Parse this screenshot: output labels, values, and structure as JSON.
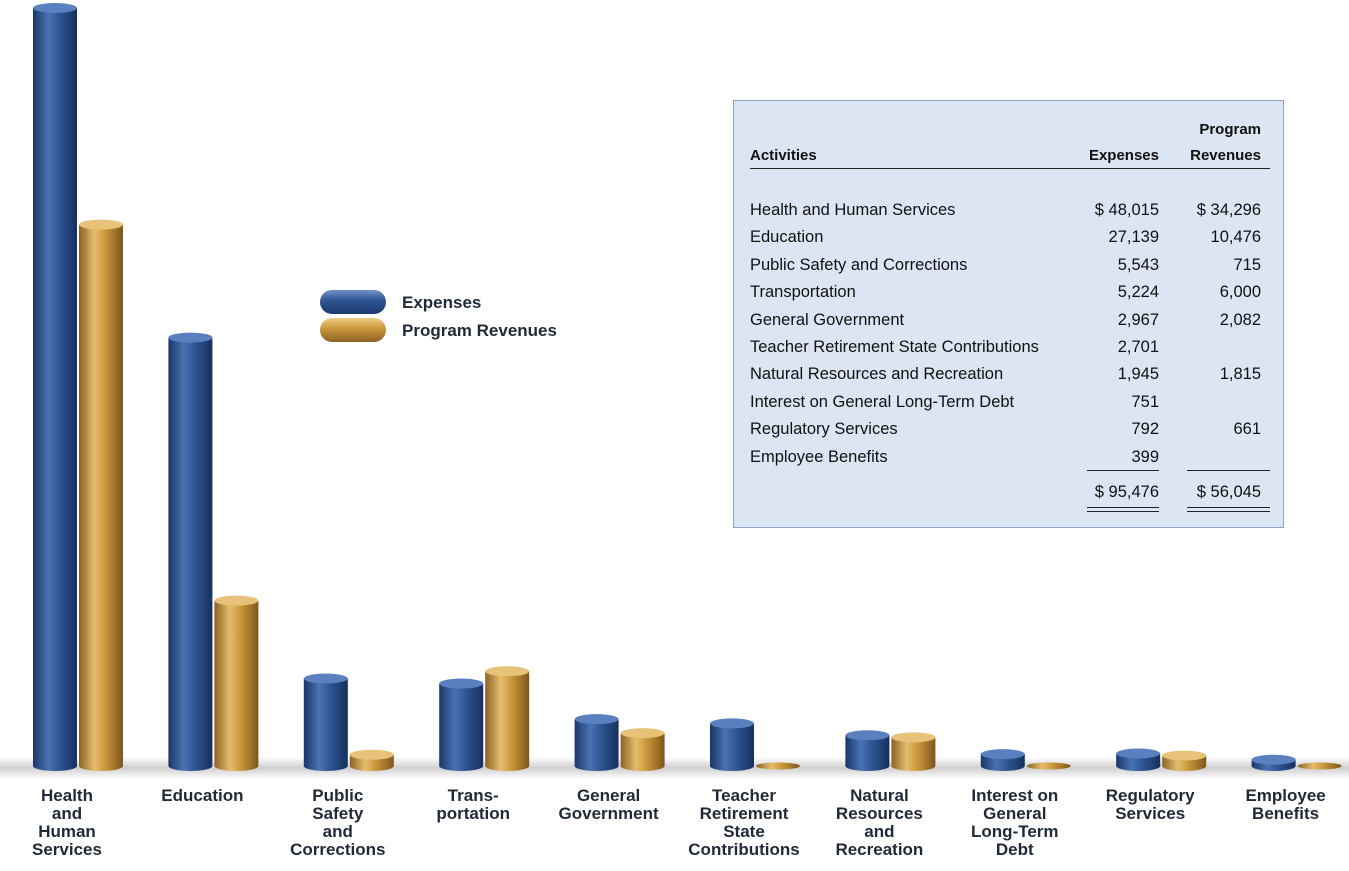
{
  "chart_data": {
    "type": "bar",
    "categories": [
      "Health\nand\nHuman\nServices",
      "Education",
      "Public\nSafety\nand\nCorrections",
      "Trans-\nportation",
      "General\nGovernment",
      "Teacher\nRetirement\nState\nContributions",
      "Natural\nResources\nand\nRecreation",
      "Interest on\nGeneral\nLong-Term\nDebt",
      "Regulatory\nServices",
      "Employee\nBenefits"
    ],
    "series": [
      {
        "name": "Expenses",
        "color": "#2e5392",
        "values": [
          48015,
          27139,
          5543,
          5224,
          2967,
          2701,
          1945,
          751,
          792,
          399
        ]
      },
      {
        "name": "Program Revenues",
        "color": "#c9973a",
        "values": [
          34296,
          10476,
          715,
          6000,
          2082,
          0,
          1815,
          0,
          661,
          0
        ]
      }
    ],
    "ylim": [
      0,
      48015
    ],
    "legend": "upper-center",
    "grid": false
  },
  "table": {
    "header": {
      "activities": "Activities",
      "expenses": "Expenses",
      "revenues_line1": "Program",
      "revenues_line2": "Revenues"
    },
    "rows": [
      {
        "label": "Health and Human Services",
        "expenses": "$ 48,015",
        "revenues": "$ 34,296"
      },
      {
        "label": "Education",
        "expenses": "27,139",
        "revenues": "10,476"
      },
      {
        "label": "Public Safety and Corrections",
        "expenses": "5,543",
        "revenues": "715"
      },
      {
        "label": "Transportation",
        "expenses": "5,224",
        "revenues": "6,000"
      },
      {
        "label": "General Government",
        "expenses": "2,967",
        "revenues": "2,082"
      },
      {
        "label": "Teacher Retirement State Contributions",
        "expenses": "2,701",
        "revenues": ""
      },
      {
        "label": "Natural Resources and Recreation",
        "expenses": "1,945",
        "revenues": "1,815"
      },
      {
        "label": "Interest on General Long-Term Debt",
        "expenses": "751",
        "revenues": ""
      },
      {
        "label": "Regulatory Services",
        "expenses": "792",
        "revenues": "661"
      },
      {
        "label": "Employee Benefits",
        "expenses": "399",
        "revenues": ""
      }
    ],
    "totals": {
      "expenses": "$ 95,476",
      "revenues": "$ 56,045"
    }
  }
}
